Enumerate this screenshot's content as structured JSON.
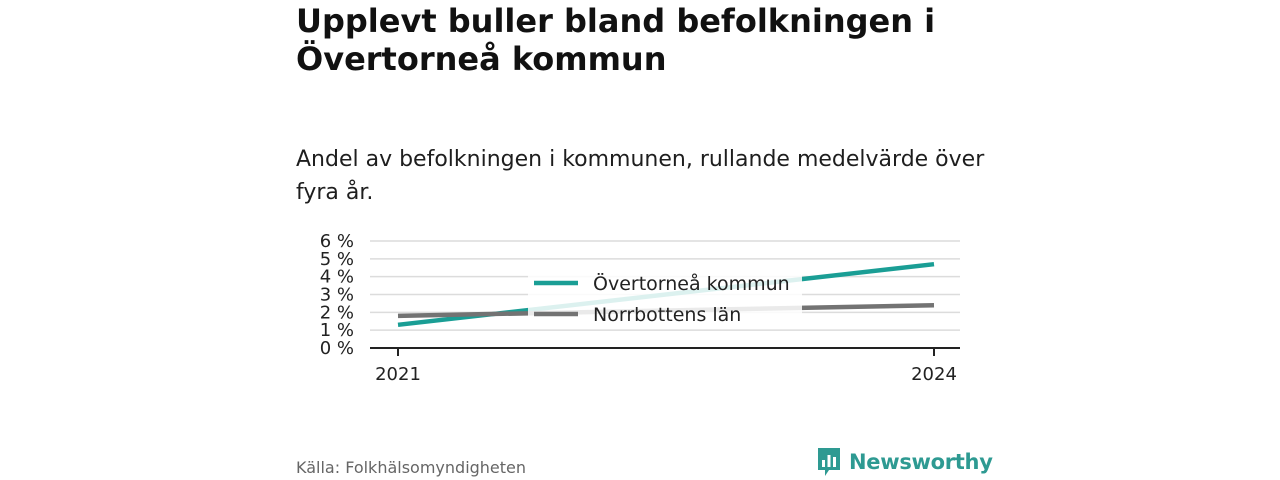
{
  "title": "Upplevt buller bland befolkningen i Övertorneå kommun",
  "subtitle": "Andel av befolkningen i kommunen, rullande medelvärde över fyra år.",
  "source": "Källa: Folkhälsomyndigheten",
  "logo": {
    "name": "Newsworthy",
    "icon": "newsworthy-chart-icon",
    "color": "#2e9a92"
  },
  "chart_data": {
    "type": "line",
    "x": [
      "2021",
      "2024"
    ],
    "ylim": [
      0,
      6
    ],
    "y_ticks": [
      "0 %",
      "1 %",
      "2 %",
      "3 %",
      "4 %",
      "5 %",
      "6 %"
    ],
    "grid": true,
    "legend_position": "center",
    "series": [
      {
        "name": "Övertorneå kommun",
        "color": "#1a9e95",
        "values": [
          1.3,
          4.7
        ]
      },
      {
        "name": "Norrbottens län",
        "color": "#737373",
        "values": [
          1.8,
          2.4
        ]
      }
    ]
  }
}
